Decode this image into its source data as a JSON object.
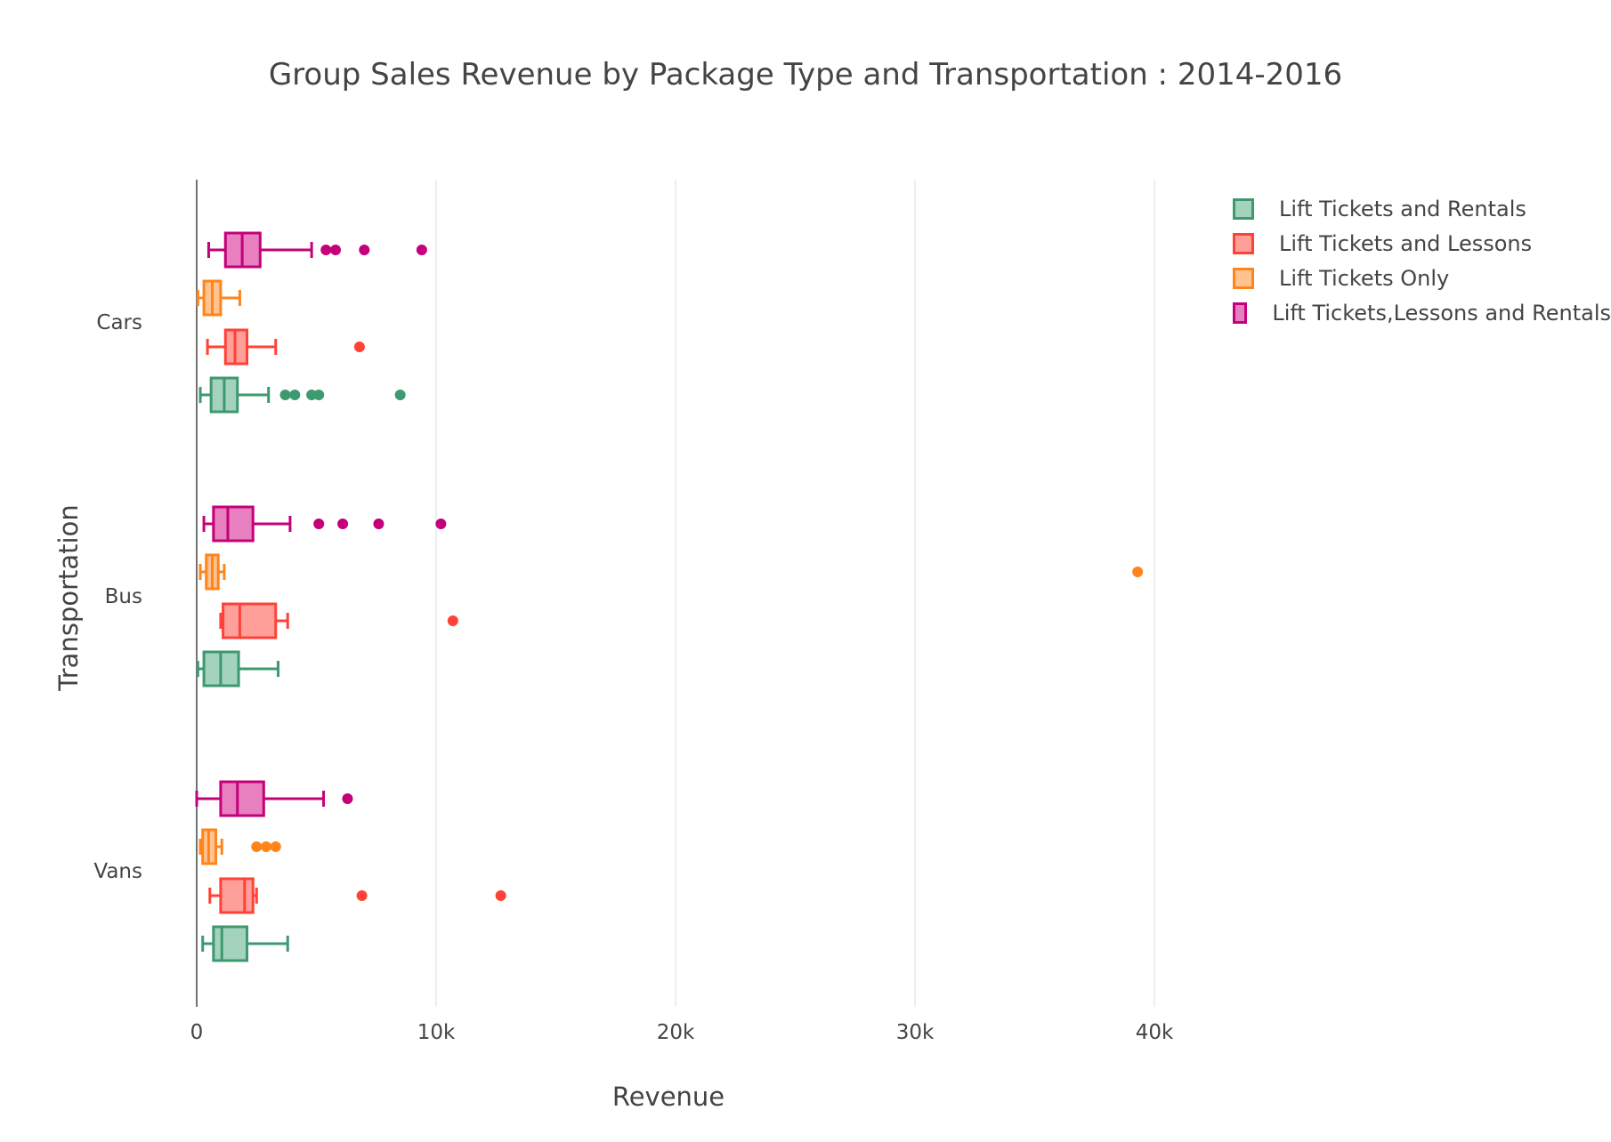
{
  "chart_data": {
    "type": "box",
    "orientation": "horizontal",
    "title": "Group Sales Revenue by Package Type and Transportation : 2014-2016",
    "xlabel": "Revenue",
    "ylabel": "Transportation",
    "xlim": [
      0,
      44000
    ],
    "x_ticks": [
      0,
      10000,
      20000,
      30000,
      40000
    ],
    "x_tick_labels": [
      "0",
      "10k",
      "20k",
      "30k",
      "40k"
    ],
    "grid": "vertical",
    "legend_position": "top-right",
    "categories": [
      "Cars",
      "Bus",
      "Vans"
    ],
    "series": [
      {
        "name": "Lift Tickets and Rentals",
        "line_color": "#3d9970",
        "fill_color": "#a3d2bd",
        "boxes": [
          {
            "category": "Cars",
            "lowerfence": 150,
            "q1": 600,
            "median": 1150,
            "q3": 1700,
            "upperfence": 3000,
            "outliers": [
              3700,
              4100,
              4800,
              5100,
              8500
            ]
          },
          {
            "category": "Bus",
            "lowerfence": 50,
            "q1": 300,
            "median": 1000,
            "q3": 1750,
            "upperfence": 3400,
            "outliers": []
          },
          {
            "category": "Vans",
            "lowerfence": 250,
            "q1": 700,
            "median": 1050,
            "q3": 2100,
            "upperfence": 3800,
            "outliers": []
          }
        ]
      },
      {
        "name": "Lift Tickets and Lessons",
        "line_color": "#ff4136",
        "fill_color": "#ff9f9a",
        "boxes": [
          {
            "category": "Cars",
            "lowerfence": 450,
            "q1": 1200,
            "median": 1600,
            "q3": 2100,
            "upperfence": 3300,
            "outliers": [
              6800
            ]
          },
          {
            "category": "Bus",
            "lowerfence": 1000,
            "q1": 1100,
            "median": 1800,
            "q3": 3300,
            "upperfence": 3800,
            "outliers": [
              10700
            ]
          },
          {
            "category": "Vans",
            "lowerfence": 550,
            "q1": 1000,
            "median": 2000,
            "q3": 2350,
            "upperfence": 2500,
            "outliers": [
              6900,
              12700
            ]
          }
        ]
      },
      {
        "name": "Lift Tickets Only",
        "line_color": "#ff851b",
        "fill_color": "#ffc291",
        "boxes": [
          {
            "category": "Cars",
            "lowerfence": 50,
            "q1": 300,
            "median": 650,
            "q3": 1000,
            "upperfence": 1800,
            "outliers": []
          },
          {
            "category": "Bus",
            "lowerfence": 150,
            "q1": 400,
            "median": 650,
            "q3": 900,
            "upperfence": 1150,
            "outliers": [
              39300
            ]
          },
          {
            "category": "Vans",
            "lowerfence": 150,
            "q1": 250,
            "median": 500,
            "q3": 800,
            "upperfence": 1050,
            "outliers": [
              2500,
              2900,
              3300
            ]
          }
        ]
      },
      {
        "name": "Lift Tickets,Lessons and Rentals",
        "line_color": "#c4007a",
        "fill_color": "#e87fbe",
        "boxes": [
          {
            "category": "Cars",
            "lowerfence": 500,
            "q1": 1200,
            "median": 1900,
            "q3": 2650,
            "upperfence": 4800,
            "outliers": [
              5400,
              5800,
              7000,
              9400
            ]
          },
          {
            "category": "Bus",
            "lowerfence": 300,
            "q1": 700,
            "median": 1300,
            "q3": 2350,
            "upperfence": 3900,
            "outliers": [
              5100,
              6100,
              7600,
              10200
            ]
          },
          {
            "category": "Vans",
            "lowerfence": 0,
            "q1": 1000,
            "median": 1700,
            "q3": 2800,
            "upperfence": 5300,
            "outliers": [
              6300
            ]
          }
        ]
      }
    ]
  },
  "legend": {
    "items": [
      {
        "label": "Lift Tickets and Rentals",
        "line_color": "#3d9970",
        "fill_color": "#a3d2bd"
      },
      {
        "label": "Lift Tickets and Lessons",
        "line_color": "#ff4136",
        "fill_color": "#ff9f9a"
      },
      {
        "label": "Lift Tickets Only",
        "line_color": "#ff851b",
        "fill_color": "#ffc291"
      },
      {
        "label": "Lift Tickets,Lessons and Rentals",
        "line_color": "#c4007a",
        "fill_color": "#e87fbe"
      }
    ]
  }
}
